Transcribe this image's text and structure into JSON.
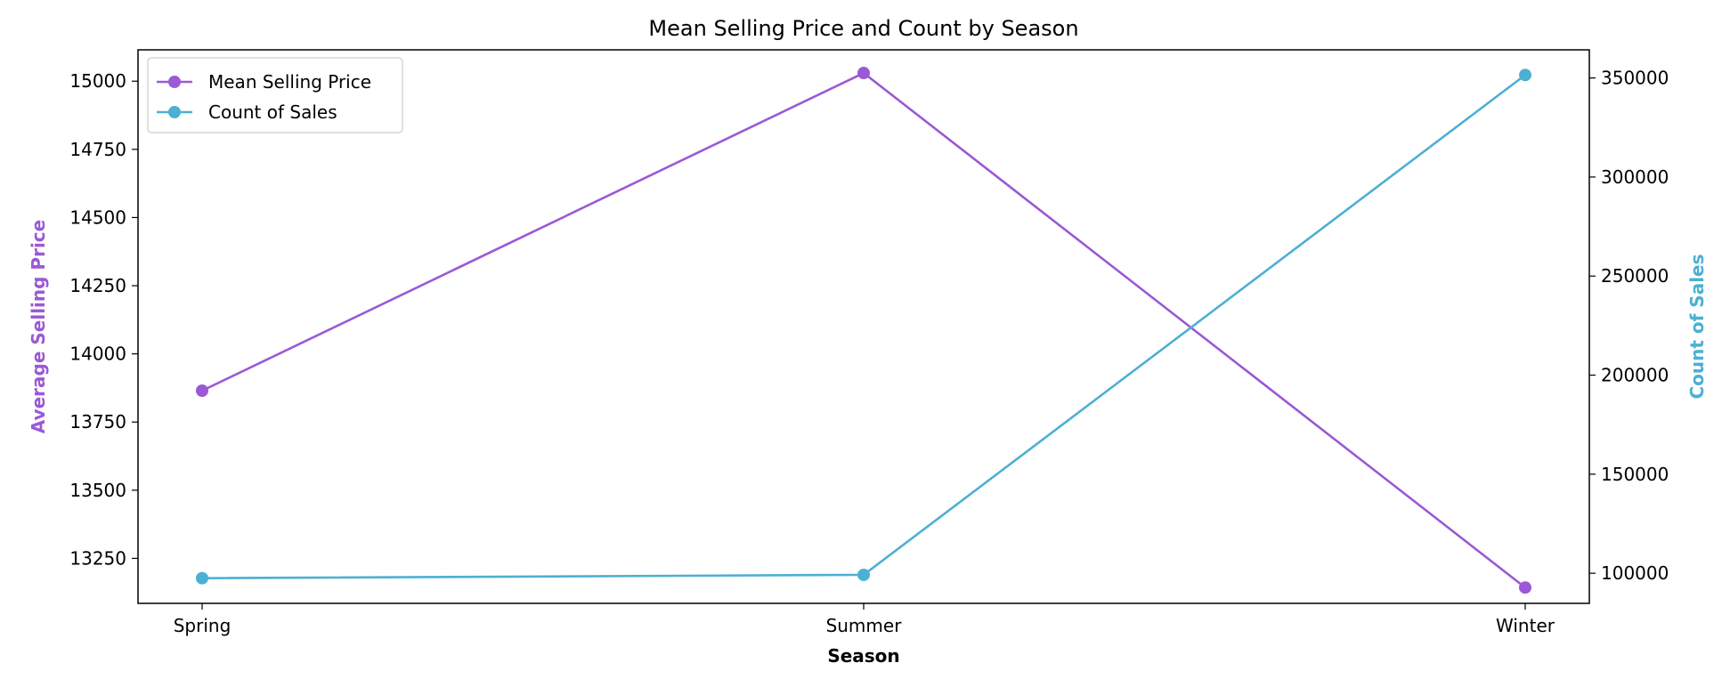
{
  "chart_data": {
    "type": "line",
    "title": "Mean Selling Price and Count by Season",
    "xlabel": "Season",
    "categories": [
      "Spring",
      "Summer",
      "Winter"
    ],
    "series": [
      {
        "name": "Mean Selling Price",
        "axis": "left",
        "color": "#9b59d6",
        "values": [
          13865,
          15030,
          13143
        ]
      },
      {
        "name": "Count of Sales",
        "axis": "right",
        "color": "#4cb0d3",
        "values": [
          97500,
          99200,
          351500
        ]
      }
    ],
    "left_axis": {
      "label": "Average Selling Price",
      "color": "#9b59d6",
      "ylim": [
        13085,
        15115
      ],
      "ticks": [
        13250,
        13500,
        13750,
        14000,
        14250,
        14500,
        14750,
        15000
      ]
    },
    "right_axis": {
      "label": "Count of Sales",
      "color": "#4cb0d3",
      "ylim": [
        84800,
        364200
      ],
      "ticks": [
        100000,
        150000,
        200000,
        250000,
        300000,
        350000
      ]
    },
    "legend": "top-left",
    "grid": false
  }
}
